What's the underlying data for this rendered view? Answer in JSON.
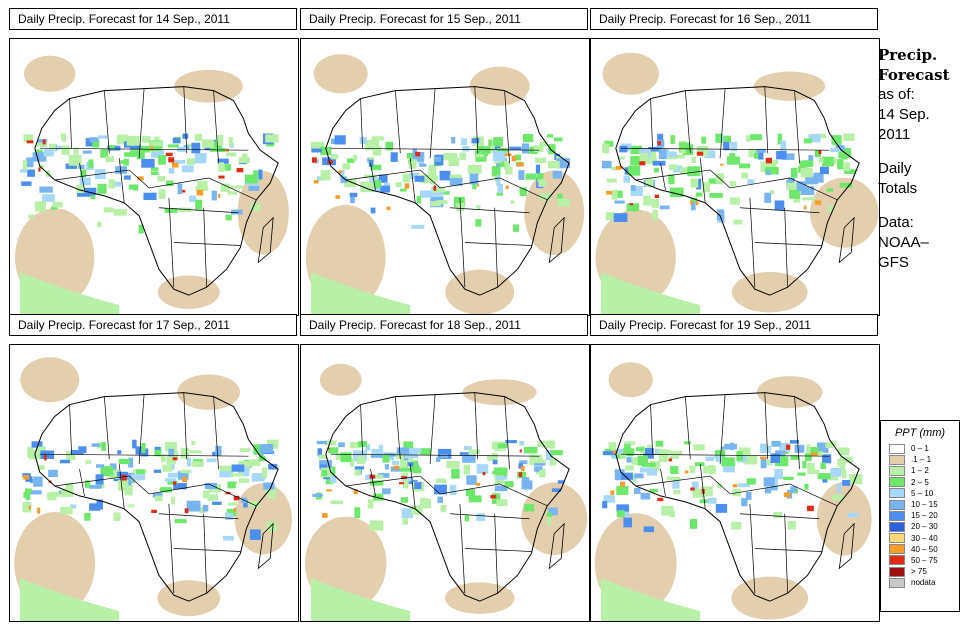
{
  "panels": [
    {
      "title": "Daily Precip. Forecast for  14 Sep., 2011"
    },
    {
      "title": "Daily Precip. Forecast for  15 Sep., 2011"
    },
    {
      "title": "Daily Precip. Forecast for  16 Sep., 2011"
    },
    {
      "title": "Daily Precip. Forecast for  17 Sep., 2011"
    },
    {
      "title": "Daily Precip. Forecast for  18 Sep., 2011"
    },
    {
      "title": "Daily Precip. Forecast for  19 Sep., 2011"
    }
  ],
  "side_info": {
    "title_line1": "Precip.",
    "title_line2": "Forecast",
    "asof_line1": "as of:",
    "asof_line2": "14 Sep.",
    "asof_line3": "2011",
    "totals_line1": "Daily",
    "totals_line2": "Totals",
    "data_line1": "Data:",
    "data_line2": "NOAA–",
    "data_line3": "GFS"
  },
  "legend": {
    "title": "PPT (mm)",
    "entries": [
      {
        "label": "0 – 1",
        "color": "#ffffff"
      },
      {
        "label": ".1 – 1",
        "color": "#e3cfae"
      },
      {
        "label": "1 – 2",
        "color": "#b8f0a8"
      },
      {
        "label": "2 – 5",
        "color": "#6ee86a"
      },
      {
        "label": "5 – 10",
        "color": "#a8d8f8"
      },
      {
        "label": "10 – 15",
        "color": "#78b4f0"
      },
      {
        "label": "15 – 20",
        "color": "#4c8ef0"
      },
      {
        "label": "20 – 30",
        "color": "#2860e0"
      },
      {
        "label": "30 – 40",
        "color": "#f8d878"
      },
      {
        "label": "40 – 50",
        "color": "#f89c28"
      },
      {
        "label": "50 – 75",
        "color": "#e02c14"
      },
      {
        "label": "> 75",
        "color": "#a01010"
      },
      {
        "label": "nodata",
        "color": "#c8c8c8"
      }
    ]
  }
}
